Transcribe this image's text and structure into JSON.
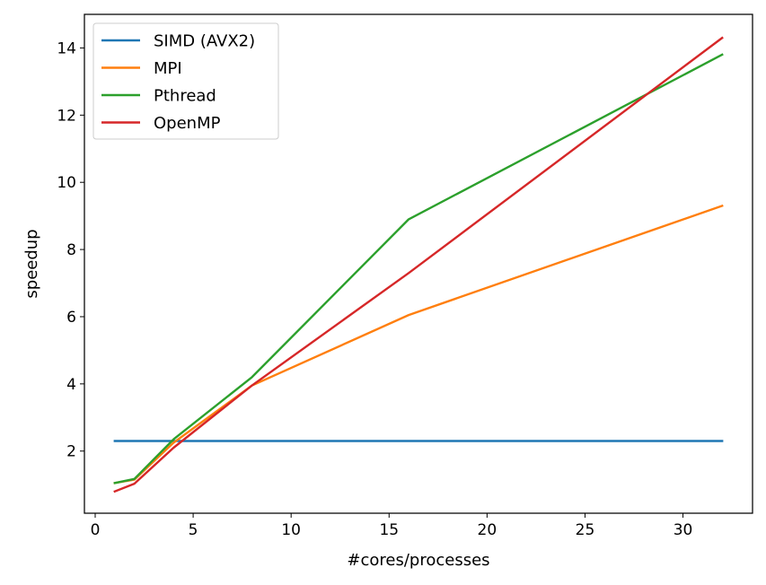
{
  "chart_data": {
    "type": "line",
    "title": "",
    "xlabel": "#cores/processes",
    "ylabel": "speedup",
    "xlim": [
      -0.55,
      33.55
    ],
    "ylim": [
      0.15,
      15.0
    ],
    "xticks": [
      0,
      5,
      10,
      15,
      20,
      25,
      30
    ],
    "yticks": [
      2,
      4,
      6,
      8,
      10,
      12,
      14
    ],
    "grid": false,
    "legend_position": "top-left",
    "series": [
      {
        "name": "SIMD (AVX2)",
        "color": "#1f77b4",
        "x": [
          1,
          32
        ],
        "y": [
          2.3,
          2.3
        ]
      },
      {
        "name": "MPI",
        "color": "#ff7f0e",
        "x": [
          1,
          2,
          4,
          8,
          16,
          32
        ],
        "y": [
          1.05,
          1.15,
          2.25,
          3.95,
          6.05,
          9.3
        ]
      },
      {
        "name": "Pthread",
        "color": "#2ca02c",
        "x": [
          1,
          2,
          4,
          8,
          16,
          32
        ],
        "y": [
          1.05,
          1.17,
          2.35,
          4.2,
          8.9,
          13.8
        ]
      },
      {
        "name": "OpenMP",
        "color": "#d62728",
        "x": [
          1,
          2,
          4,
          8,
          16,
          32
        ],
        "y": [
          0.8,
          1.03,
          2.1,
          3.95,
          7.3,
          14.3
        ]
      }
    ]
  }
}
